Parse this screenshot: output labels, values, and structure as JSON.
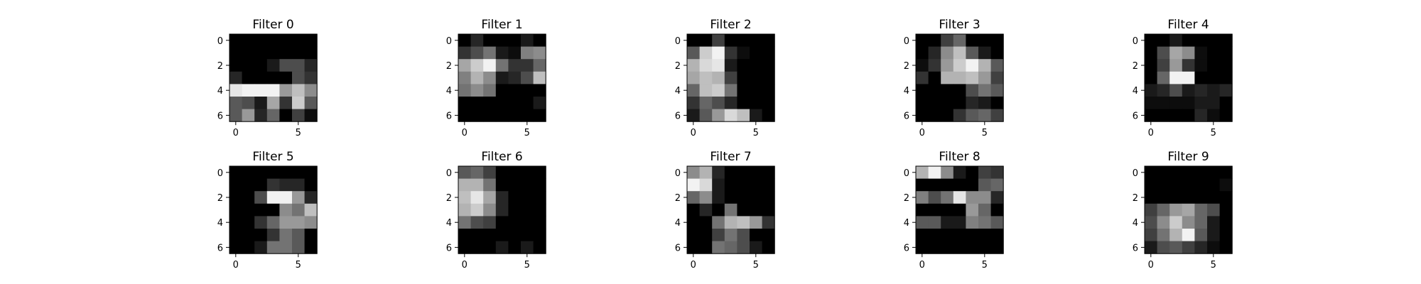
{
  "chart_data": [
    {
      "type": "heatmap",
      "title": "Filter 0",
      "x_ticks": [
        "0",
        "5"
      ],
      "y_ticks": [
        "0",
        "2",
        "4",
        "6"
      ],
      "xlim": [
        -0.5,
        6.5
      ],
      "ylim": [
        6.5,
        -0.5
      ],
      "colormap": "gray",
      "values": [
        [
          0.0,
          0.0,
          0.0,
          0.0,
          0.0,
          0.0,
          0.0
        ],
        [
          0.0,
          0.0,
          0.0,
          0.0,
          0.0,
          0.0,
          0.0
        ],
        [
          0.0,
          0.0,
          0.0,
          0.1,
          0.3,
          0.3,
          0.15
        ],
        [
          0.15,
          0.0,
          0.0,
          0.0,
          0.0,
          0.3,
          0.2
        ],
        [
          0.9,
          0.95,
          0.95,
          0.95,
          0.6,
          0.75,
          0.55
        ],
        [
          0.35,
          0.3,
          0.1,
          0.65,
          0.2,
          0.8,
          0.35
        ],
        [
          0.35,
          0.6,
          0.15,
          0.4,
          0.0,
          0.25,
          0.05
        ]
      ]
    },
    {
      "type": "heatmap",
      "title": "Filter 1",
      "x_ticks": [
        "0",
        "5"
      ],
      "y_ticks": [
        "0",
        "2",
        "4",
        "6"
      ],
      "xlim": [
        -0.5,
        6.5
      ],
      "ylim": [
        6.5,
        -0.5
      ],
      "colormap": "gray",
      "values": [
        [
          0.0,
          0.15,
          0.0,
          0.0,
          0.0,
          0.1,
          0.0
        ],
        [
          0.2,
          0.3,
          0.45,
          0.1,
          0.05,
          0.5,
          0.55
        ],
        [
          0.65,
          0.8,
          0.95,
          0.45,
          0.2,
          0.2,
          0.4
        ],
        [
          0.5,
          0.7,
          0.55,
          0.1,
          0.15,
          0.3,
          0.75
        ],
        [
          0.45,
          0.55,
          0.45,
          0.0,
          0.0,
          0.0,
          0.0
        ],
        [
          0.0,
          0.0,
          0.0,
          0.0,
          0.0,
          0.0,
          0.1
        ],
        [
          0.0,
          0.0,
          0.0,
          0.0,
          0.0,
          0.0,
          0.0
        ]
      ]
    },
    {
      "type": "heatmap",
      "title": "Filter 2",
      "x_ticks": [
        "0",
        "5"
      ],
      "y_ticks": [
        "0",
        "2",
        "4",
        "6"
      ],
      "xlim": [
        -0.5,
        6.5
      ],
      "ylim": [
        6.5,
        -0.5
      ],
      "colormap": "gray",
      "values": [
        [
          0.0,
          0.0,
          0.25,
          0.0,
          0.0,
          0.0,
          0.0
        ],
        [
          0.35,
          0.8,
          0.95,
          0.2,
          0.05,
          0.0,
          0.0
        ],
        [
          0.7,
          0.85,
          0.9,
          0.1,
          0.0,
          0.0,
          0.0
        ],
        [
          0.65,
          0.75,
          0.7,
          0.25,
          0.0,
          0.0,
          0.0
        ],
        [
          0.4,
          0.75,
          0.8,
          0.45,
          0.0,
          0.0,
          0.0
        ],
        [
          0.2,
          0.4,
          0.3,
          0.15,
          0.0,
          0.0,
          0.0
        ],
        [
          0.1,
          0.35,
          0.6,
          0.85,
          0.75,
          0.1,
          0.0
        ]
      ]
    },
    {
      "type": "heatmap",
      "title": "Filter 3",
      "x_ticks": [
        "0",
        "5"
      ],
      "y_ticks": [
        "0",
        "2",
        "4",
        "6"
      ],
      "xlim": [
        -0.5,
        6.5
      ],
      "ylim": [
        6.5,
        -0.5
      ],
      "colormap": "gray",
      "values": [
        [
          0.0,
          0.0,
          0.25,
          0.4,
          0.0,
          0.0,
          0.0
        ],
        [
          0.0,
          0.15,
          0.55,
          0.75,
          0.35,
          0.1,
          0.0
        ],
        [
          0.05,
          0.2,
          0.6,
          0.8,
          0.95,
          0.7,
          0.35
        ],
        [
          0.2,
          0.0,
          0.7,
          0.7,
          0.75,
          0.6,
          0.25
        ],
        [
          0.0,
          0.0,
          0.0,
          0.0,
          0.3,
          0.45,
          0.35
        ],
        [
          0.0,
          0.0,
          0.0,
          0.0,
          0.15,
          0.1,
          0.0
        ],
        [
          0.0,
          0.0,
          0.0,
          0.2,
          0.35,
          0.4,
          0.25
        ]
      ]
    },
    {
      "type": "heatmap",
      "title": "Filter 4",
      "x_ticks": [
        "0",
        "5"
      ],
      "y_ticks": [
        "0",
        "2",
        "4",
        "6"
      ],
      "xlim": [
        -0.5,
        6.5
      ],
      "ylim": [
        6.5,
        -0.5
      ],
      "colormap": "gray",
      "values": [
        [
          0.0,
          0.0,
          0.1,
          0.0,
          0.0,
          0.0,
          0.0
        ],
        [
          0.0,
          0.3,
          0.65,
          0.55,
          0.05,
          0.0,
          0.0
        ],
        [
          0.0,
          0.25,
          0.6,
          0.2,
          0.05,
          0.0,
          0.0
        ],
        [
          0.0,
          0.4,
          0.95,
          0.95,
          0.0,
          0.0,
          0.0
        ],
        [
          0.1,
          0.15,
          0.3,
          0.1,
          0.15,
          0.1,
          0.15
        ],
        [
          0.05,
          0.05,
          0.05,
          0.05,
          0.1,
          0.1,
          0.0
        ],
        [
          0.0,
          0.0,
          0.0,
          0.0,
          0.15,
          0.05,
          0.0
        ]
      ]
    },
    {
      "type": "heatmap",
      "title": "Filter 5",
      "x_ticks": [
        "0",
        "5"
      ],
      "y_ticks": [
        "0",
        "2",
        "4",
        "6"
      ],
      "xlim": [
        -0.5,
        6.5
      ],
      "ylim": [
        6.5,
        -0.5
      ],
      "colormap": "gray",
      "values": [
        [
          0.0,
          0.0,
          0.0,
          0.0,
          0.0,
          0.0,
          0.0
        ],
        [
          0.0,
          0.0,
          0.0,
          0.2,
          0.15,
          0.15,
          0.0
        ],
        [
          0.0,
          0.0,
          0.3,
          0.95,
          0.95,
          0.6,
          0.15
        ],
        [
          0.0,
          0.0,
          0.0,
          0.0,
          0.55,
          0.45,
          0.75
        ],
        [
          0.0,
          0.0,
          0.2,
          0.4,
          0.6,
          0.6,
          0.55
        ],
        [
          0.0,
          0.0,
          0.0,
          0.2,
          0.45,
          0.35,
          0.0
        ],
        [
          0.0,
          0.0,
          0.1,
          0.45,
          0.45,
          0.35,
          0.0
        ]
      ]
    },
    {
      "type": "heatmap",
      "title": "Filter 6",
      "x_ticks": [
        "0",
        "5"
      ],
      "y_ticks": [
        "0",
        "2",
        "4",
        "6"
      ],
      "xlim": [
        -0.5,
        6.5
      ],
      "ylim": [
        6.5,
        -0.5
      ],
      "colormap": "gray",
      "values": [
        [
          0.35,
          0.4,
          0.25,
          0.0,
          0.0,
          0.0,
          0.0
        ],
        [
          0.7,
          0.7,
          0.45,
          0.0,
          0.0,
          0.0,
          0.0
        ],
        [
          0.75,
          0.9,
          0.65,
          0.15,
          0.0,
          0.0,
          0.0
        ],
        [
          0.7,
          0.8,
          0.55,
          0.15,
          0.0,
          0.0,
          0.0
        ],
        [
          0.45,
          0.3,
          0.25,
          0.0,
          0.0,
          0.0,
          0.0
        ],
        [
          0.0,
          0.0,
          0.0,
          0.0,
          0.0,
          0.0,
          0.0
        ],
        [
          0.0,
          0.0,
          0.0,
          0.1,
          0.0,
          0.1,
          0.0
        ]
      ]
    },
    {
      "type": "heatmap",
      "title": "Filter 7",
      "x_ticks": [
        "0",
        "5"
      ],
      "y_ticks": [
        "0",
        "2",
        "4",
        "6"
      ],
      "xlim": [
        -0.5,
        6.5
      ],
      "ylim": [
        6.5,
        -0.5
      ],
      "colormap": "gray",
      "values": [
        [
          0.55,
          0.7,
          0.15,
          0.0,
          0.0,
          0.0,
          0.0
        ],
        [
          0.95,
          0.85,
          0.1,
          0.0,
          0.0,
          0.0,
          0.0
        ],
        [
          0.4,
          0.55,
          0.1,
          0.0,
          0.0,
          0.0,
          0.0
        ],
        [
          0.0,
          0.15,
          0.0,
          0.45,
          0.0,
          0.0,
          0.0
        ],
        [
          0.0,
          0.0,
          0.45,
          0.7,
          0.75,
          0.6,
          0.2
        ],
        [
          0.0,
          0.0,
          0.25,
          0.45,
          0.3,
          0.0,
          0.0
        ],
        [
          0.0,
          0.0,
          0.45,
          0.4,
          0.3,
          0.1,
          0.0
        ]
      ]
    },
    {
      "type": "heatmap",
      "title": "Filter 8",
      "x_ticks": [
        "0",
        "5"
      ],
      "y_ticks": [
        "0",
        "2",
        "4",
        "6"
      ],
      "xlim": [
        -0.5,
        6.5
      ],
      "ylim": [
        6.5,
        -0.5
      ],
      "colormap": "gray",
      "values": [
        [
          0.7,
          0.95,
          0.55,
          0.1,
          0.0,
          0.25,
          0.2
        ],
        [
          0.0,
          0.0,
          0.0,
          0.0,
          0.0,
          0.35,
          0.4
        ],
        [
          0.5,
          0.3,
          0.45,
          0.9,
          0.55,
          0.55,
          0.15
        ],
        [
          0.0,
          0.0,
          0.0,
          0.0,
          0.6,
          0.4,
          0.0
        ],
        [
          0.35,
          0.35,
          0.1,
          0.1,
          0.5,
          0.45,
          0.35
        ],
        [
          0.0,
          0.0,
          0.0,
          0.0,
          0.0,
          0.0,
          0.0
        ],
        [
          0.0,
          0.0,
          0.0,
          0.0,
          0.0,
          0.0,
          0.0
        ]
      ]
    },
    {
      "type": "heatmap",
      "title": "Filter 9",
      "x_ticks": [
        "0",
        "5"
      ],
      "y_ticks": [
        "0",
        "2",
        "4",
        "6"
      ],
      "xlim": [
        -0.5,
        6.5
      ],
      "ylim": [
        6.5,
        -0.5
      ],
      "colormap": "gray",
      "values": [
        [
          0.0,
          0.0,
          0.0,
          0.0,
          0.0,
          0.0,
          0.0
        ],
        [
          0.0,
          0.0,
          0.0,
          0.0,
          0.0,
          0.0,
          0.05
        ],
        [
          0.0,
          0.0,
          0.0,
          0.0,
          0.0,
          0.0,
          0.0
        ],
        [
          0.25,
          0.4,
          0.6,
          0.65,
          0.4,
          0.3,
          0.0
        ],
        [
          0.3,
          0.55,
          0.8,
          0.55,
          0.4,
          0.1,
          0.0
        ],
        [
          0.25,
          0.45,
          0.7,
          0.95,
          0.35,
          0.1,
          0.0
        ],
        [
          0.1,
          0.3,
          0.35,
          0.25,
          0.15,
          0.05,
          0.0
        ]
      ]
    }
  ]
}
